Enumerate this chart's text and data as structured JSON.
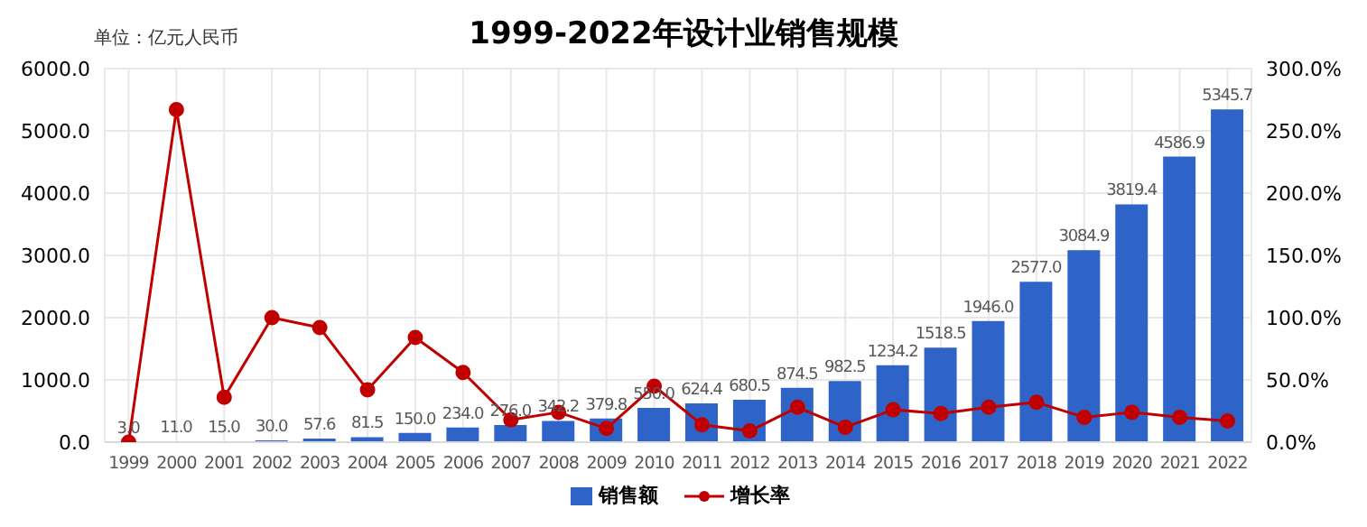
{
  "chart_data": {
    "type": "bar",
    "title": "1999-2022年设计业销售规模",
    "annotations": [
      "单位：亿元人民币"
    ],
    "categories": [
      "1999",
      "2000",
      "2001",
      "2002",
      "2003",
      "2004",
      "2005",
      "2006",
      "2007",
      "2008",
      "2009",
      "2010",
      "2011",
      "2012",
      "2013",
      "2014",
      "2015",
      "2016",
      "2017",
      "2018",
      "2019",
      "2020",
      "2021",
      "2022"
    ],
    "series": [
      {
        "name": "销售额",
        "color": "#2e63c8",
        "values": [
          3.0,
          11.0,
          15.0,
          30.0,
          57.6,
          81.5,
          150.0,
          234.0,
          276.0,
          342.2,
          379.8,
          550.0,
          624.4,
          680.5,
          874.5,
          982.5,
          1234.2,
          1518.5,
          1946.0,
          2577.0,
          3084.9,
          3819.4,
          4586.9,
          5345.7
        ],
        "value_labels": [
          "3.0",
          "11.0",
          "15.0",
          "30.0",
          "57.6",
          "81.5",
          "150.0",
          "234.0",
          "276.0",
          "342.2",
          "379.8",
          "550.0",
          "624.4",
          "680.5",
          "874.5",
          "982.5",
          "1234.2",
          "1518.5",
          "1946.0",
          "2577.0",
          "3084.9",
          "3819.4",
          "4586.9",
          "5345.7"
        ]
      },
      {
        "name": "增长率",
        "type": "line",
        "axis": "y2",
        "color": "#c00000",
        "marker": "circle",
        "values": [
          0,
          267,
          36,
          100,
          92,
          42,
          84,
          56,
          18,
          24,
          11,
          45,
          14,
          9,
          28,
          12,
          26,
          23,
          28,
          32,
          20,
          24,
          20,
          17
        ]
      }
    ],
    "ylim": [
      0,
      6000
    ],
    "yticks": [
      {
        "value": 0,
        "label": "0.0"
      },
      {
        "value": 1000,
        "label": "1000.0"
      },
      {
        "value": 2000,
        "label": "2000.0"
      },
      {
        "value": 3000,
        "label": "3000.0"
      },
      {
        "value": 4000,
        "label": "4000.0"
      },
      {
        "value": 5000,
        "label": "5000.0"
      },
      {
        "value": 6000,
        "label": "6000.0"
      }
    ],
    "y2lim": [
      0,
      300
    ],
    "y2ticks": [
      {
        "value": 0,
        "label": "0.0%"
      },
      {
        "value": 50,
        "label": "50.0%"
      },
      {
        "value": 100,
        "label": "100.0%"
      },
      {
        "value": 150,
        "label": "150.0%"
      },
      {
        "value": 200,
        "label": "200.0%"
      },
      {
        "value": 250,
        "label": "250.0%"
      },
      {
        "value": 300,
        "label": "300.0%"
      }
    ],
    "grid": true,
    "legend": "bottom"
  }
}
